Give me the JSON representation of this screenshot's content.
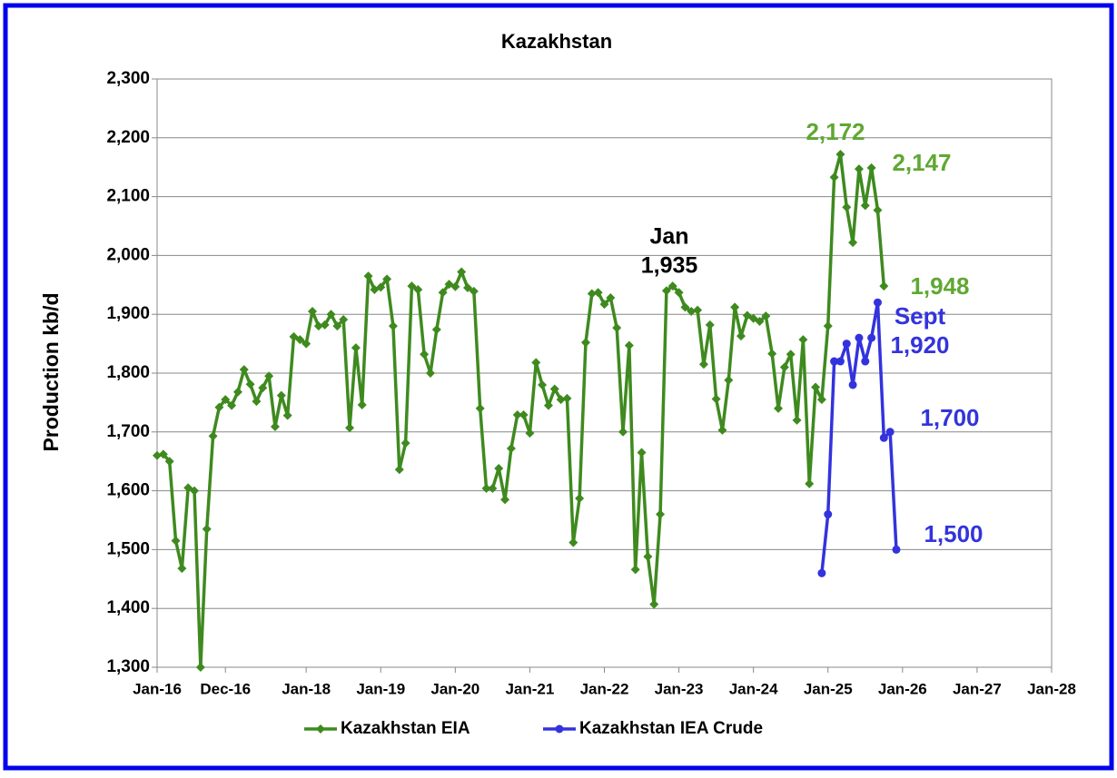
{
  "chart_data": {
    "type": "line",
    "title": "Kazakhstan",
    "y_label": "Production kb/d",
    "xlim": [
      "2016-01",
      "2028-01"
    ],
    "xticks": [
      {
        "value": "2016-01",
        "label": "Jan-16"
      },
      {
        "value": "2016-12",
        "label": "Dec-16"
      },
      {
        "value": "2018-01",
        "label": "Jan-18"
      },
      {
        "value": "2019-01",
        "label": "Jan-19"
      },
      {
        "value": "2020-01",
        "label": "Jan-20"
      },
      {
        "value": "2021-01",
        "label": "Jan-21"
      },
      {
        "value": "2022-01",
        "label": "Jan-22"
      },
      {
        "value": "2023-01",
        "label": "Jan-23"
      },
      {
        "value": "2024-01",
        "label": "Jan-24"
      },
      {
        "value": "2025-01",
        "label": "Jan-25"
      },
      {
        "value": "2026-01",
        "label": "Jan-26"
      },
      {
        "value": "2027-01",
        "label": "Jan-27"
      },
      {
        "value": "2028-01",
        "label": "Jan-28"
      }
    ],
    "ylim": [
      1300,
      2300
    ],
    "yticks": [
      {
        "value": 1300,
        "label": "1,300"
      },
      {
        "value": 1400,
        "label": "1,400"
      },
      {
        "value": 1500,
        "label": "1,500"
      },
      {
        "value": 1600,
        "label": "1,600"
      },
      {
        "value": 1700,
        "label": "1,700"
      },
      {
        "value": 1800,
        "label": "1,800"
      },
      {
        "value": 1900,
        "label": "1,900"
      },
      {
        "value": 2000,
        "label": "2,000"
      },
      {
        "value": 2100,
        "label": "2,100"
      },
      {
        "value": 2200,
        "label": "2,200"
      },
      {
        "value": 2300,
        "label": "2,300"
      }
    ],
    "grid": true,
    "legend": "bottom",
    "series": [
      {
        "name": "Kazakhstan EIA",
        "color": "#3f8a1f",
        "marker": "diamond",
        "x": [
          "2016-01",
          "2016-02",
          "2016-03",
          "2016-04",
          "2016-05",
          "2016-06",
          "2016-07",
          "2016-08",
          "2016-09",
          "2016-10",
          "2016-11",
          "2016-12",
          "2017-01",
          "2017-02",
          "2017-03",
          "2017-04",
          "2017-05",
          "2017-06",
          "2017-07",
          "2017-08",
          "2017-09",
          "2017-10",
          "2017-11",
          "2017-12",
          "2018-01",
          "2018-02",
          "2018-03",
          "2018-04",
          "2018-05",
          "2018-06",
          "2018-07",
          "2018-08",
          "2018-09",
          "2018-10",
          "2018-11",
          "2018-12",
          "2019-01",
          "2019-02",
          "2019-03",
          "2019-04",
          "2019-05",
          "2019-06",
          "2019-07",
          "2019-08",
          "2019-09",
          "2019-10",
          "2019-11",
          "2019-12",
          "2020-01",
          "2020-02",
          "2020-03",
          "2020-04",
          "2020-05",
          "2020-06",
          "2020-07",
          "2020-08",
          "2020-09",
          "2020-10",
          "2020-11",
          "2020-12",
          "2021-01",
          "2021-02",
          "2021-03",
          "2021-04",
          "2021-05",
          "2021-06",
          "2021-07",
          "2021-08",
          "2021-09",
          "2021-10",
          "2021-11",
          "2021-12",
          "2022-01",
          "2022-02",
          "2022-03",
          "2022-04",
          "2022-05",
          "2022-06",
          "2022-07",
          "2022-08",
          "2022-09",
          "2022-10",
          "2022-11",
          "2022-12",
          "2023-01",
          "2023-02",
          "2023-03",
          "2023-04",
          "2023-05",
          "2023-06",
          "2023-07",
          "2023-08",
          "2023-09",
          "2023-10",
          "2023-11",
          "2023-12",
          "2024-01",
          "2024-02",
          "2024-03",
          "2024-04",
          "2024-05",
          "2024-06",
          "2024-07",
          "2024-08",
          "2024-09",
          "2024-10",
          "2024-11",
          "2024-12",
          "2025-01",
          "2025-02",
          "2025-03",
          "2025-04",
          "2025-05",
          "2025-06",
          "2025-07",
          "2025-08",
          "2025-09",
          "2025-10"
        ],
        "values": [
          1660,
          1662,
          1650,
          1515,
          1468,
          1605,
          1600,
          1300,
          1535,
          1693,
          1742,
          1755,
          1745,
          1768,
          1806,
          1781,
          1752,
          1775,
          1795,
          1709,
          1762,
          1728,
          1862,
          1857,
          1850,
          1905,
          1880,
          1882,
          1900,
          1880,
          1891,
          1707,
          1843,
          1746,
          1965,
          1942,
          1946,
          1960,
          1880,
          1636,
          1681,
          1948,
          1942,
          1832,
          1800,
          1874,
          1937,
          1951,
          1947,
          1972,
          1945,
          1939,
          1740,
          1604,
          1604,
          1638,
          1585,
          1672,
          1729,
          1729,
          1698,
          1818,
          1780,
          1745,
          1773,
          1755,
          1757,
          1512,
          1587,
          1852,
          1935,
          1937,
          1917,
          1928,
          1877,
          1700,
          1847,
          1466,
          1665,
          1488,
          1407,
          1560,
          1940,
          1948,
          1937,
          1912,
          1905,
          1907,
          1815,
          1882,
          1756,
          1703,
          1788,
          1912,
          1863,
          1898,
          1893,
          1888,
          1897,
          1833,
          1740,
          1810,
          1832,
          1720,
          1857,
          1612,
          1776,
          1755,
          1880,
          2133,
          2172,
          2082,
          2022,
          2147,
          2085,
          2149,
          2077,
          1948
        ]
      },
      {
        "name": "Kazakhstan IEA Crude",
        "color": "#3333dd",
        "marker": "circle",
        "x": [
          "2024-12",
          "2025-01",
          "2025-02",
          "2025-03",
          "2025-04",
          "2025-05",
          "2025-06",
          "2025-07",
          "2025-08",
          "2025-09",
          "2025-10",
          "2025-11",
          "2025-12"
        ],
        "values": [
          1460,
          1560,
          1820,
          1820,
          1850,
          1780,
          1860,
          1820,
          1860,
          1920,
          1690,
          1700,
          1500
        ]
      }
    ],
    "annotations": [
      {
        "text": "2,172",
        "color": "#5fa832"
      },
      {
        "text": "2,147",
        "color": "#5fa832"
      },
      {
        "text": "Jan",
        "color": "#000000"
      },
      {
        "text": "1,935",
        "color": "#000000"
      },
      {
        "text": "1,948",
        "color": "#5fa832"
      },
      {
        "text": "Sept",
        "color": "#3333dd"
      },
      {
        "text": "1,920",
        "color": "#3333dd"
      },
      {
        "text": "1,700",
        "color": "#3333dd"
      },
      {
        "text": "1,500",
        "color": "#3333dd"
      }
    ]
  }
}
